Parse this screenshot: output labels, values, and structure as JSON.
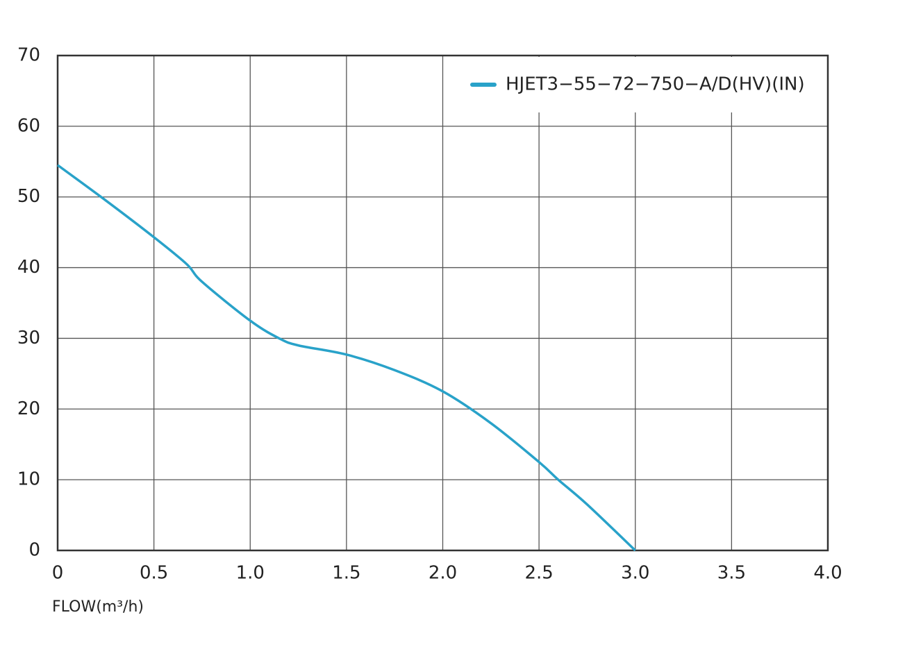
{
  "chart_data": {
    "type": "line",
    "x_label": "FLOW(m³/h)",
    "x": [
      0,
      0.25,
      0.5,
      0.67,
      0.75,
      1.0,
      1.15,
      1.25,
      1.5,
      1.75,
      2.0,
      2.25,
      2.5,
      2.6,
      2.75,
      3.0
    ],
    "series": [
      {
        "name": "HJET3−55−72−750−A/D(HV)(IN)",
        "color": "#29a2c9",
        "values": [
          54.5,
          49.5,
          44.3,
          40.5,
          38,
          32.5,
          30,
          29,
          27.7,
          25.5,
          22.5,
          18,
          12.5,
          10,
          6.5,
          0
        ]
      }
    ],
    "xlim": [
      0,
      4
    ],
    "xticks": [
      0,
      0.5,
      {
        "value": 1,
        "label": "1.0"
      },
      1.5,
      {
        "value": 2,
        "label": "2.0"
      },
      2.5,
      {
        "value": 3,
        "label": "3.0"
      },
      3.5,
      {
        "value": 4,
        "label": "4.0"
      }
    ],
    "ylim": [
      0,
      70
    ],
    "yticks": [
      0,
      10,
      20,
      30,
      40,
      50,
      60,
      70
    ],
    "grid": true,
    "legend": "top-right"
  }
}
